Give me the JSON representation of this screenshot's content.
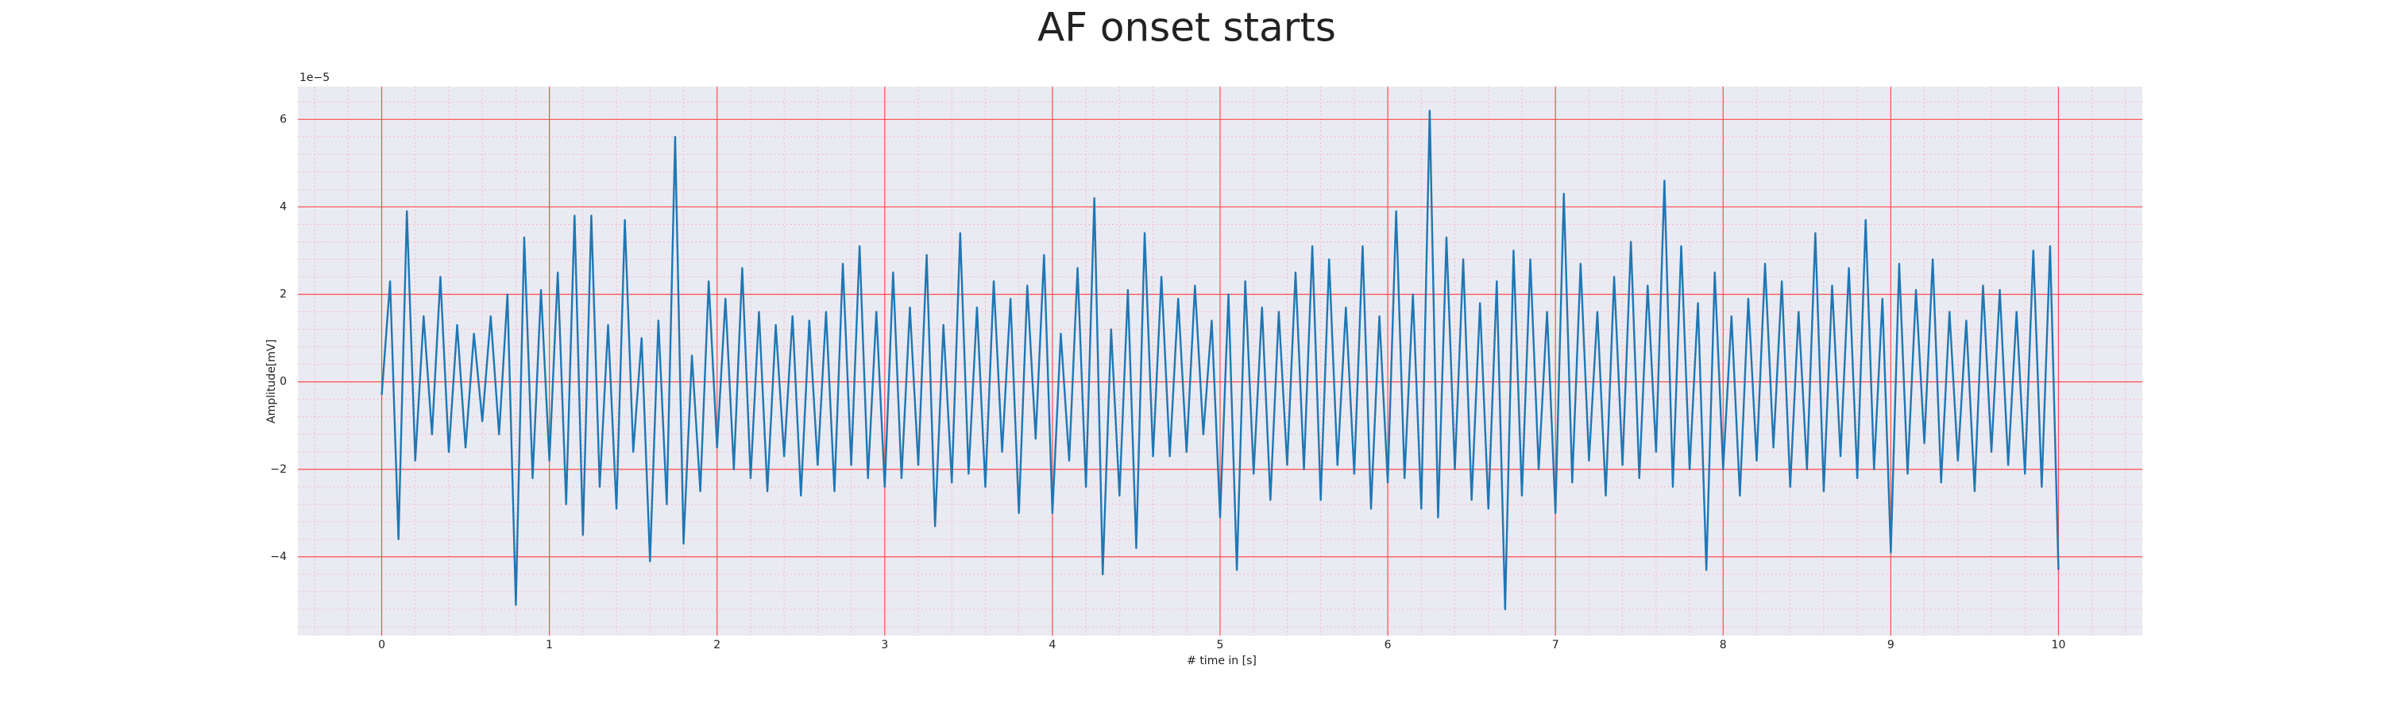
{
  "chart_data": {
    "type": "line",
    "title": "AF onset starts",
    "x_label": "# time in [s]",
    "y_label": "Amplitude[mV]",
    "y_offset_label": "1e−5",
    "color": "#1f77b4",
    "grid": true,
    "minor_grid": true,
    "xlim": [
      -0.5,
      10.5
    ],
    "xticks": [
      0,
      1,
      2,
      3,
      4,
      5,
      6,
      7,
      8,
      9,
      10
    ],
    "ylim": [
      -5.8,
      6.75
    ],
    "yticks": [
      {
        "value": -4,
        "label": "−4"
      },
      {
        "value": -2,
        "label": "−2"
      },
      0,
      2,
      4,
      6
    ],
    "x": [
      0,
      0.05,
      0.1,
      0.15,
      0.2,
      0.25,
      0.3,
      0.35,
      0.4,
      0.45,
      0.5,
      0.55,
      0.6,
      0.65,
      0.7,
      0.75,
      0.8,
      0.85,
      0.9,
      0.95,
      1,
      1.05,
      1.1,
      1.15,
      1.2,
      1.25,
      1.3,
      1.35,
      1.4,
      1.45,
      1.5,
      1.55,
      1.6,
      1.65,
      1.7,
      1.75,
      1.8,
      1.85,
      1.9,
      1.95,
      2,
      2.05,
      2.1,
      2.15,
      2.2,
      2.25,
      2.3,
      2.35,
      2.4,
      2.45,
      2.5,
      2.55,
      2.6,
      2.65,
      2.7,
      2.75,
      2.8,
      2.85,
      2.9,
      2.95,
      3,
      3.05,
      3.1,
      3.15,
      3.2,
      3.25,
      3.3,
      3.35,
      3.4,
      3.45,
      3.5,
      3.55,
      3.6,
      3.65,
      3.7,
      3.75,
      3.8,
      3.85,
      3.9,
      3.95,
      4,
      4.05,
      4.1,
      4.15,
      4.2,
      4.25,
      4.3,
      4.35,
      4.4,
      4.45,
      4.5,
      4.55,
      4.6,
      4.65,
      4.7,
      4.75,
      4.8,
      4.85,
      4.9,
      4.95,
      5,
      5.05,
      5.1,
      5.15,
      5.2,
      5.25,
      5.3,
      5.35,
      5.4,
      5.45,
      5.5,
      5.55,
      5.6,
      5.65,
      5.7,
      5.75,
      5.8,
      5.85,
      5.9,
      5.95,
      6,
      6.05,
      6.1,
      6.15,
      6.2,
      6.25,
      6.3,
      6.35,
      6.4,
      6.45,
      6.5,
      6.55,
      6.6,
      6.65,
      6.7,
      6.75,
      6.8,
      6.85,
      6.9,
      6.95,
      7,
      7.05,
      7.1,
      7.15,
      7.2,
      7.25,
      7.3,
      7.35,
      7.4,
      7.45,
      7.5,
      7.55,
      7.6,
      7.65,
      7.7,
      7.75,
      7.8,
      7.85,
      7.9,
      7.95,
      8,
      8.05,
      8.1,
      8.15,
      8.2,
      8.25,
      8.3,
      8.35,
      8.4,
      8.45,
      8.5,
      8.55,
      8.6,
      8.65,
      8.7,
      8.75,
      8.8,
      8.85,
      8.9,
      8.95,
      9,
      9.05,
      9.1,
      9.15,
      9.2,
      9.25,
      9.3,
      9.35,
      9.4,
      9.45,
      9.5,
      9.55,
      9.6,
      9.65,
      9.7,
      9.75,
      9.8,
      9.85,
      9.9,
      9.95,
      10
    ],
    "values": [
      -0.3,
      2.3,
      -3.6,
      3.9,
      -1.8,
      1.5,
      -1.2,
      2.4,
      -1.6,
      1.3,
      -1.5,
      1.1,
      -0.9,
      1.5,
      -1.2,
      2.0,
      -5.1,
      3.3,
      -2.2,
      2.1,
      -1.8,
      2.5,
      -2.8,
      3.8,
      -3.5,
      3.8,
      -2.4,
      1.3,
      -2.9,
      3.7,
      -1.6,
      1.0,
      -4.1,
      1.4,
      -2.8,
      5.6,
      -3.7,
      0.6,
      -2.5,
      2.3,
      -1.5,
      1.9,
      -2.0,
      2.6,
      -2.2,
      1.6,
      -2.5,
      1.3,
      -1.7,
      1.5,
      -2.6,
      1.4,
      -1.9,
      1.6,
      -2.5,
      2.7,
      -1.9,
      3.1,
      -2.2,
      1.6,
      -2.4,
      2.5,
      -2.2,
      1.7,
      -1.9,
      2.9,
      -3.3,
      1.3,
      -2.3,
      3.4,
      -2.1,
      1.7,
      -2.4,
      2.3,
      -1.6,
      1.9,
      -3.0,
      2.2,
      -1.3,
      2.9,
      -3.0,
      1.1,
      -1.8,
      2.6,
      -2.4,
      4.2,
      -4.4,
      1.2,
      -2.6,
      2.1,
      -3.8,
      3.4,
      -1.7,
      2.4,
      -1.7,
      1.9,
      -1.6,
      2.2,
      -1.2,
      1.4,
      -3.1,
      2.0,
      -4.3,
      2.3,
      -2.1,
      1.7,
      -2.7,
      1.6,
      -1.9,
      2.5,
      -2.0,
      3.1,
      -2.7,
      2.8,
      -1.9,
      1.7,
      -2.1,
      3.1,
      -2.9,
      1.5,
      -2.3,
      3.9,
      -2.2,
      2.0,
      -2.9,
      6.2,
      -3.1,
      3.3,
      -2.0,
      2.8,
      -2.7,
      1.8,
      -2.9,
      2.3,
      -5.2,
      3.0,
      -2.6,
      2.8,
      -2.0,
      1.6,
      -3.0,
      4.3,
      -2.3,
      2.7,
      -1.8,
      1.6,
      -2.6,
      2.4,
      -1.9,
      3.2,
      -2.2,
      2.2,
      -1.6,
      4.6,
      -2.4,
      3.1,
      -2.0,
      1.8,
      -4.3,
      2.5,
      -2.0,
      1.5,
      -2.6,
      1.9,
      -1.8,
      2.7,
      -1.5,
      2.3,
      -2.4,
      1.6,
      -2.0,
      3.4,
      -2.5,
      2.2,
      -1.7,
      2.6,
      -2.2,
      3.7,
      -2.0,
      1.9,
      -3.9,
      2.7,
      -2.1,
      2.1,
      -1.4,
      2.8,
      -2.3,
      1.6,
      -1.8,
      1.4,
      -2.5,
      2.2,
      -1.6,
      2.1,
      -1.9,
      1.6,
      -2.1,
      3.0,
      -2.4,
      3.1,
      -4.3
    ]
  }
}
